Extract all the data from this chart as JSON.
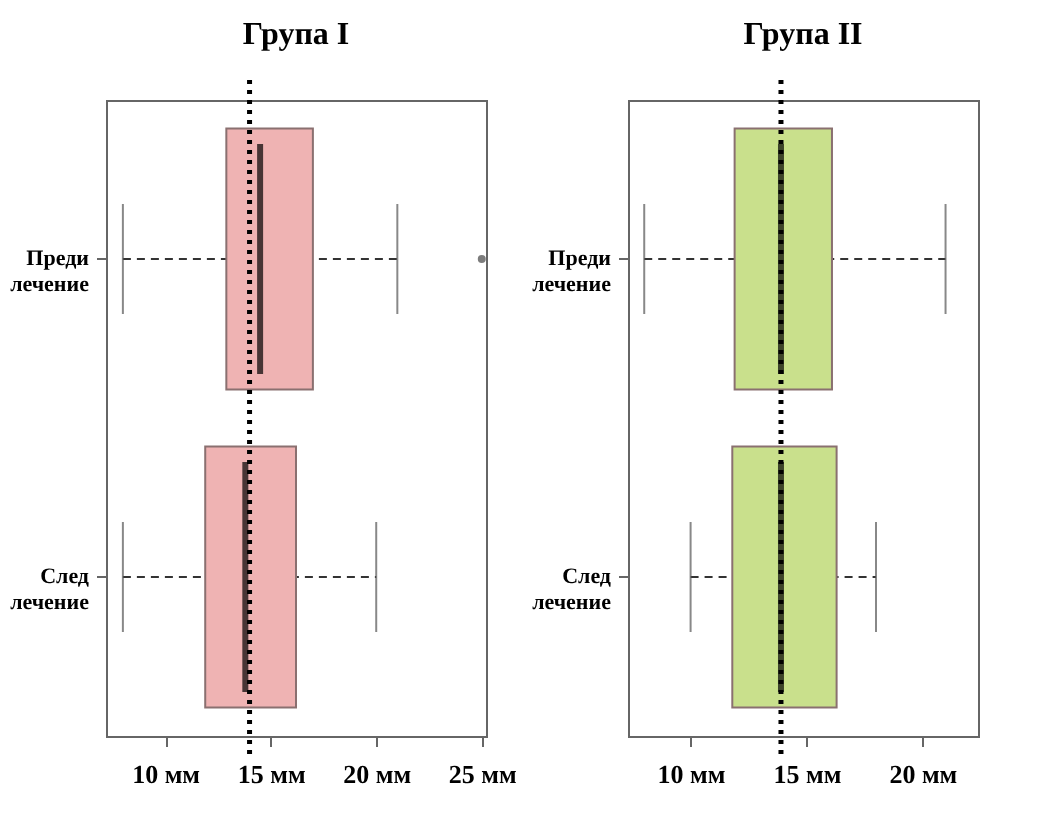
{
  "chart_data": [
    {
      "type": "box",
      "title": "Група I",
      "categories": [
        "Преди лечение",
        "След лечение"
      ],
      "orientation": "horizontal",
      "colors": [
        "#efb3b3",
        "#efb3b3"
      ],
      "boxes": [
        {
          "low": 8,
          "q1": 12.9,
          "median": 14.5,
          "q3": 17,
          "high": 21,
          "outliers": [
            25
          ]
        },
        {
          "low": 8,
          "q1": 11.9,
          "median": 13.8,
          "q3": 16.2,
          "high": 20
        }
      ],
      "xlim": [
        7.2,
        25.2
      ],
      "xticks": [
        {
          "value": 10,
          "label": "10 мм"
        },
        {
          "value": 15,
          "label": "15 мм"
        },
        {
          "value": 20,
          "label": "20 мм"
        },
        {
          "value": 25,
          "label": "25 мм"
        }
      ],
      "ref_lines": [
        {
          "axis": "x",
          "value": 14,
          "line_style": "dotted"
        }
      ],
      "grid": false
    },
    {
      "type": "box",
      "title": "Група II",
      "categories": [
        "Преди лечение",
        "След лечение"
      ],
      "orientation": "horizontal",
      "colors": [
        "#c9e08c",
        "#c9e08c"
      ],
      "boxes": [
        {
          "low": 8,
          "q1": 11.9,
          "median": 13.9,
          "q3": 16.1,
          "high": 21
        },
        {
          "low": 10,
          "q1": 11.8,
          "median": 13.9,
          "q3": 16.3,
          "high": 18
        }
      ],
      "xlim": [
        7.3,
        22.4
      ],
      "xticks": [
        {
          "value": 10,
          "label": "10 мм"
        },
        {
          "value": 15,
          "label": "15 мм"
        },
        {
          "value": 20,
          "label": "20 мм"
        }
      ],
      "ref_lines": [
        {
          "axis": "x",
          "value": 13.9,
          "line_style": "dotted"
        }
      ],
      "grid": false
    }
  ]
}
